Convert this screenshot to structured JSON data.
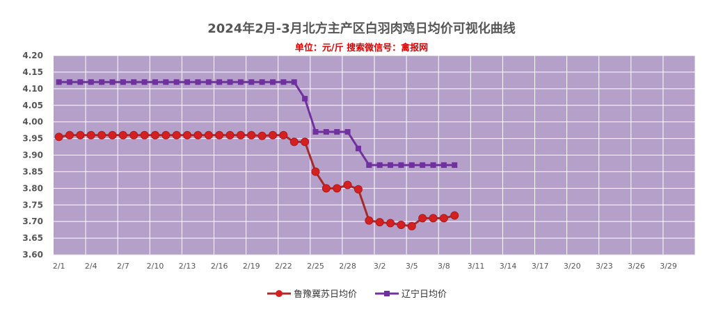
{
  "chart_data": {
    "type": "line",
    "title": "2024年2月-3月北方主产区白羽肉鸡日均价可视化曲线",
    "subtitle": "单位：元/斤    搜索微信号：禽报网",
    "ylim": [
      3.6,
      4.2
    ],
    "ytick_labels": [
      "3.60",
      "3.65",
      "3.70",
      "3.75",
      "3.80",
      "3.85",
      "3.90",
      "3.95",
      "4.00",
      "4.05",
      "4.10",
      "4.15",
      "4.20"
    ],
    "xtick_labels": [
      "2/1",
      "2/4",
      "2/7",
      "2/10",
      "2/13",
      "2/16",
      "2/19",
      "2/22",
      "2/25",
      "2/28",
      "3/2",
      "3/5",
      "3/8",
      "3/11",
      "3/14",
      "3/17",
      "3/20",
      "3/23",
      "3/26",
      "3/29"
    ],
    "grid": true,
    "legend_position": "bottom",
    "x_category_count": 60,
    "series": [
      {
        "name": "鲁豫冀苏日均价",
        "color": "#d42020",
        "line_color": "#a52a2a",
        "marker": "circle",
        "values": [
          3.955,
          3.96,
          3.96,
          3.96,
          3.96,
          3.96,
          3.96,
          3.96,
          3.96,
          3.96,
          3.96,
          3.96,
          3.96,
          3.96,
          3.96,
          3.96,
          3.96,
          3.96,
          3.96,
          3.958,
          3.96,
          3.96,
          3.94,
          3.94,
          3.85,
          3.8,
          3.8,
          3.81,
          3.797,
          3.703,
          3.698,
          3.695,
          3.69,
          3.686,
          3.71,
          3.71,
          3.71,
          3.718
        ]
      },
      {
        "name": "辽宁日均价",
        "color": "#7030a0",
        "line_color": "#7030a0",
        "marker": "square",
        "values": [
          4.12,
          4.12,
          4.12,
          4.12,
          4.12,
          4.12,
          4.12,
          4.12,
          4.12,
          4.12,
          4.12,
          4.12,
          4.12,
          4.12,
          4.12,
          4.12,
          4.12,
          4.12,
          4.12,
          4.12,
          4.12,
          4.12,
          4.12,
          4.07,
          3.97,
          3.97,
          3.97,
          3.97,
          3.92,
          3.87,
          3.87,
          3.87,
          3.87,
          3.87,
          3.87,
          3.87,
          3.87,
          3.87
        ]
      }
    ]
  },
  "colors": {
    "plot_background": "#b4a0c8",
    "gridline": "#ffffff"
  }
}
